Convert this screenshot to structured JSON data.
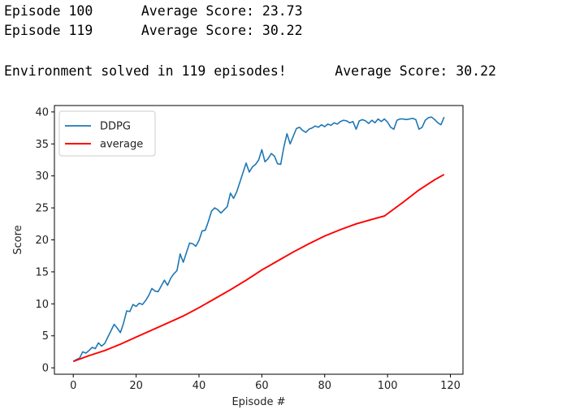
{
  "log": {
    "lines": [
      "Episode 100      Average Score: 23.73",
      "Episode 119      Average Score: 30.22",
      "",
      "Environment solved in 119 episodes!      Average Score: 30.22"
    ]
  },
  "chart_data": {
    "type": "line",
    "title": "",
    "xlabel": "Episode #",
    "ylabel": "Score",
    "xlim": [
      -6,
      124
    ],
    "ylim": [
      -1,
      41
    ],
    "xticks": [
      0,
      20,
      40,
      60,
      80,
      100,
      120
    ],
    "yticks": [
      0,
      5,
      10,
      15,
      20,
      25,
      30,
      35,
      40
    ],
    "grid": false,
    "legend_position": "top-left",
    "series": [
      {
        "name": "DDPG",
        "color": "#1f77b4",
        "x": [
          0,
          1,
          2,
          3,
          4,
          5,
          6,
          7,
          8,
          9,
          10,
          11,
          12,
          13,
          14,
          15,
          16,
          17,
          18,
          19,
          20,
          21,
          22,
          23,
          24,
          25,
          26,
          27,
          28,
          29,
          30,
          31,
          32,
          33,
          34,
          35,
          36,
          37,
          38,
          39,
          40,
          41,
          42,
          43,
          44,
          45,
          46,
          47,
          48,
          49,
          50,
          51,
          52,
          53,
          54,
          55,
          56,
          57,
          58,
          59,
          60,
          61,
          62,
          63,
          64,
          65,
          66,
          67,
          68,
          69,
          70,
          71,
          72,
          73,
          74,
          75,
          76,
          77,
          78,
          79,
          80,
          81,
          82,
          83,
          84,
          85,
          86,
          87,
          88,
          89,
          90,
          91,
          92,
          93,
          94,
          95,
          96,
          97,
          98,
          99,
          100,
          101,
          102,
          103,
          104,
          105,
          106,
          107,
          108,
          109,
          110,
          111,
          112,
          113,
          114,
          115,
          116,
          117,
          118
        ],
        "y": [
          1.0,
          1.3,
          1.5,
          2.5,
          2.3,
          2.7,
          3.2,
          3.0,
          3.9,
          3.4,
          3.8,
          4.8,
          5.8,
          6.8,
          6.2,
          5.5,
          7.0,
          8.9,
          8.8,
          9.9,
          9.6,
          10.1,
          9.9,
          10.5,
          11.3,
          12.4,
          12.0,
          11.9,
          12.8,
          13.7,
          12.9,
          14.0,
          14.7,
          15.2,
          17.8,
          16.5,
          18.0,
          19.5,
          19.4,
          19.0,
          19.9,
          21.4,
          21.5,
          22.9,
          24.5,
          25.0,
          24.7,
          24.2,
          24.7,
          25.2,
          27.3,
          26.5,
          27.5,
          29.0,
          30.5,
          32.0,
          30.6,
          31.4,
          31.8,
          32.5,
          34.1,
          32.2,
          32.7,
          33.5,
          33.1,
          31.9,
          31.8,
          34.5,
          36.6,
          35.0,
          36.2,
          37.4,
          37.6,
          37.1,
          36.8,
          37.3,
          37.5,
          37.8,
          37.6,
          38.0,
          37.7,
          38.1,
          37.9,
          38.3,
          38.1,
          38.5,
          38.7,
          38.6,
          38.3,
          38.5,
          37.3,
          38.6,
          38.8,
          38.6,
          38.2,
          38.7,
          38.3,
          38.9,
          38.5,
          38.9,
          38.4,
          37.6,
          37.3,
          38.7,
          38.9,
          38.9,
          38.8,
          38.9,
          39.0,
          38.8,
          37.3,
          37.6,
          38.7,
          39.1,
          39.2,
          38.8,
          38.3,
          38.0,
          39.2
        ]
      },
      {
        "name": "average",
        "color": "#ff0000",
        "x": [
          0,
          5,
          10,
          15,
          20,
          25,
          30,
          35,
          40,
          45,
          50,
          55,
          60,
          65,
          70,
          75,
          80,
          85,
          90,
          95,
          99,
          105,
          110,
          115,
          118
        ],
        "y": [
          1.0,
          1.9,
          2.7,
          3.7,
          4.8,
          5.9,
          7.0,
          8.1,
          9.4,
          10.8,
          12.2,
          13.7,
          15.3,
          16.7,
          18.1,
          19.4,
          20.6,
          21.6,
          22.5,
          23.2,
          23.73,
          25.9,
          27.8,
          29.4,
          30.22
        ]
      }
    ]
  }
}
